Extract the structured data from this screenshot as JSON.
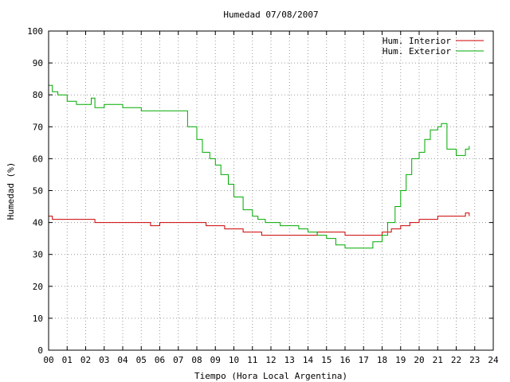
{
  "chart_data": {
    "type": "line",
    "title": "Humedad 07/08/2007",
    "xlabel": "Tiempo (Hora Local Argentina)",
    "ylabel": "Humedad (%)",
    "xlim": [
      0,
      24
    ],
    "ylim": [
      0,
      100
    ],
    "x_ticks": [
      "00",
      "01",
      "02",
      "03",
      "04",
      "05",
      "06",
      "07",
      "08",
      "09",
      "10",
      "11",
      "12",
      "13",
      "14",
      "15",
      "16",
      "17",
      "18",
      "19",
      "20",
      "21",
      "22",
      "23",
      "24"
    ],
    "y_ticks": [
      0,
      10,
      20,
      30,
      40,
      50,
      60,
      70,
      80,
      90,
      100
    ],
    "grid": true,
    "legend": "top-right",
    "series": [
      {
        "name": "Hum. Interior",
        "color": "#cc0000",
        "x": [
          0,
          0.2,
          0.5,
          1,
          2,
          2.5,
          3,
          4,
          5,
          5.5,
          6,
          7,
          8,
          8.5,
          9,
          9.5,
          10,
          10.5,
          11,
          11.5,
          12,
          12.5,
          13,
          13.5,
          14,
          14.5,
          15,
          15.5,
          16,
          16.5,
          17,
          17.5,
          18,
          18.5,
          19,
          19.5,
          20,
          20.5,
          21,
          21.5,
          22,
          22.5,
          22.7
        ],
        "y": [
          42,
          41,
          41,
          41,
          41,
          40,
          40,
          40,
          40,
          39,
          40,
          40,
          40,
          39,
          39,
          38,
          38,
          37,
          37,
          36,
          36,
          36,
          36,
          36,
          36,
          37,
          37,
          37,
          36,
          36,
          36,
          36,
          37,
          38,
          39,
          40,
          41,
          41,
          42,
          42,
          42,
          43,
          42
        ]
      },
      {
        "name": "Hum. Exterior",
        "color": "#00aa00",
        "x": [
          0,
          0.2,
          0.5,
          1,
          1.5,
          2,
          2.3,
          2.5,
          3,
          4,
          5,
          5.5,
          6,
          7,
          7.5,
          8,
          8.3,
          8.7,
          9,
          9.3,
          9.7,
          10,
          10.5,
          11,
          11.3,
          11.7,
          12,
          12.5,
          13,
          13.5,
          14,
          14.5,
          15,
          15.5,
          16,
          16.5,
          17,
          17.5,
          18,
          18.3,
          18.7,
          19,
          19.3,
          19.6,
          20,
          20.3,
          20.6,
          21,
          21.2,
          21.5,
          22,
          22.5,
          22.7
        ],
        "y": [
          83,
          81,
          80,
          78,
          77,
          77,
          79,
          76,
          77,
          76,
          75,
          75,
          75,
          75,
          70,
          66,
          62,
          60,
          58,
          55,
          52,
          48,
          44,
          42,
          41,
          40,
          40,
          39,
          39,
          38,
          37,
          36,
          35,
          33,
          32,
          32,
          32,
          34,
          36,
          40,
          45,
          50,
          55,
          60,
          62,
          66,
          69,
          70,
          71,
          63,
          61,
          63,
          64
        ]
      }
    ]
  }
}
